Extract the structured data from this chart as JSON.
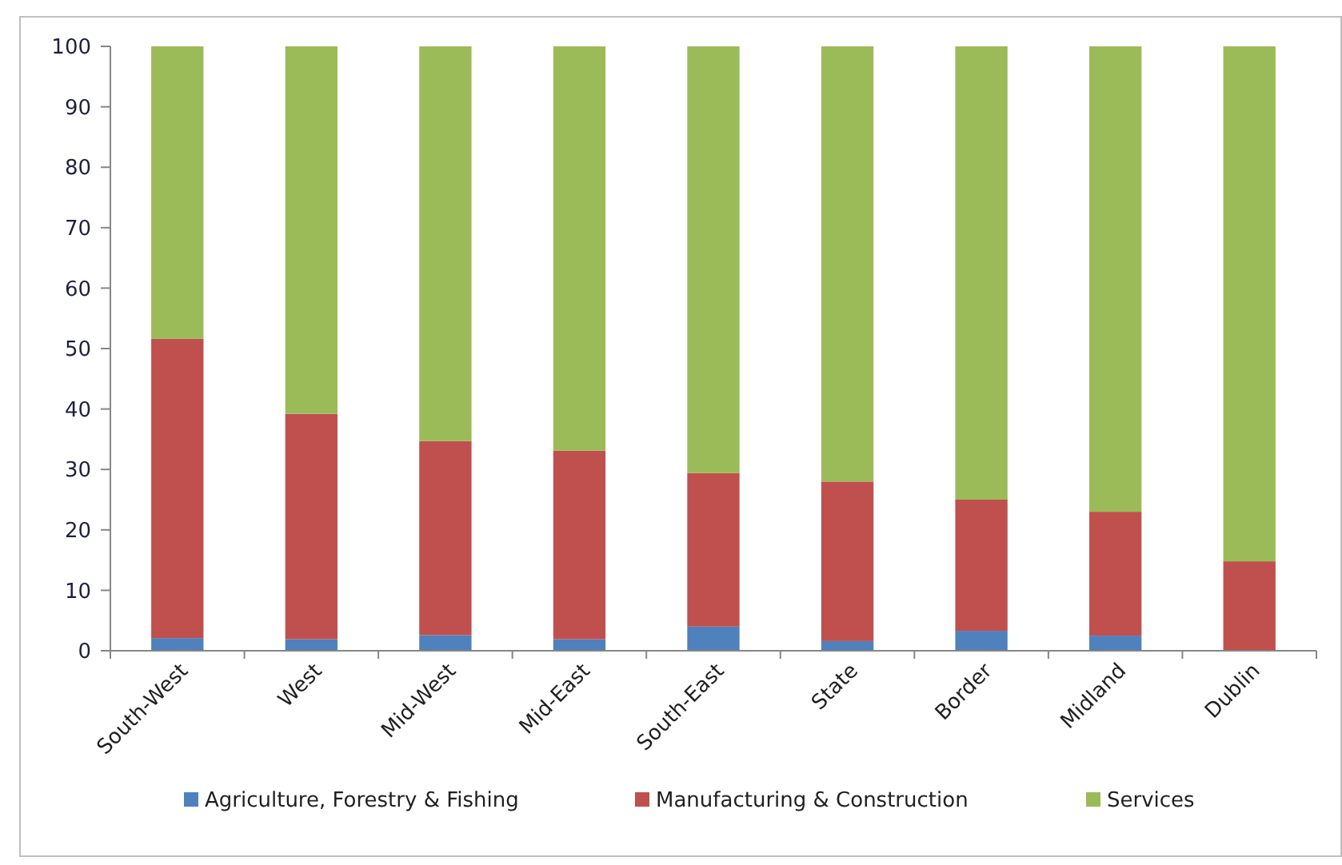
{
  "chart_data": {
    "type": "bar",
    "stacked": true,
    "categories": [
      "South-West",
      "West",
      "Mid-West",
      "Mid-East",
      "South-East",
      "State",
      "Border",
      "Midland",
      "Dublin"
    ],
    "series": [
      {
        "name": "Agriculture, Forestry & Fishing",
        "color": "#4f81bd",
        "values": [
          2.1,
          1.9,
          2.6,
          1.9,
          4.0,
          1.6,
          3.3,
          2.5,
          0
        ]
      },
      {
        "name": "Manufacturing & Construction",
        "color": "#c0504d",
        "values": [
          49.5,
          37.3,
          32.1,
          31.2,
          25.4,
          26.4,
          21.7,
          20.5,
          14.8
        ]
      },
      {
        "name": "Services",
        "color": "#9bbb59",
        "values": [
          48.4,
          60.8,
          65.3,
          66.9,
          70.6,
          72.0,
          75.0,
          77.0,
          85.2
        ]
      }
    ],
    "ylim": [
      0,
      100
    ],
    "yticks": [
      0,
      10,
      20,
      30,
      40,
      50,
      60,
      70,
      80,
      90,
      100
    ],
    "grid": false,
    "legend": "bottom"
  }
}
